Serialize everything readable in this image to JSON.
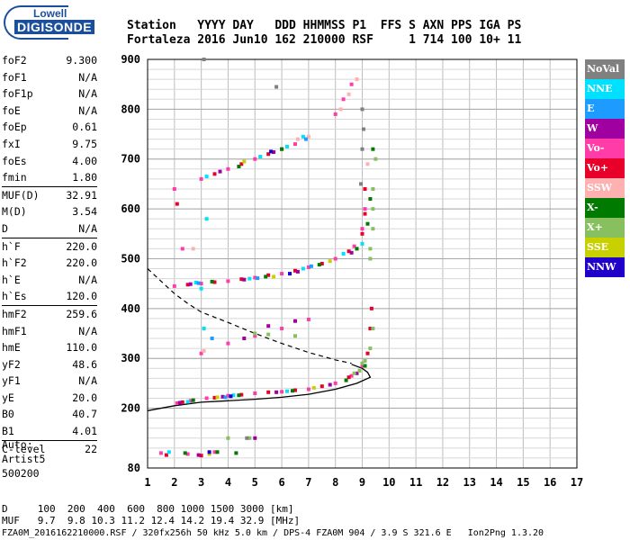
{
  "logo": {
    "brand": "Lowell",
    "product": "DIGISONDE"
  },
  "header": {
    "line1": "Station   YYYY DAY   DDD HHMMSS P1  FFS S AXN PPS IGA PS",
    "line2": "Fortaleza 2016 Jun10 162 210000 RSF     1 714 100 10+ 11"
  },
  "params": {
    "group1": [
      {
        "name": "foF2",
        "value": "9.300"
      },
      {
        "name": "foF1",
        "value": "N/A"
      },
      {
        "name": "foF1p",
        "value": "N/A"
      },
      {
        "name": "foE",
        "value": "N/A"
      },
      {
        "name": "foEp",
        "value": "0.61"
      },
      {
        "name": "fxI",
        "value": "9.75"
      },
      {
        "name": "foEs",
        "value": "4.00"
      },
      {
        "name": "fmin",
        "value": "1.80"
      }
    ],
    "group2": [
      {
        "name": "MUF(D)",
        "value": "32.91"
      },
      {
        "name": "M(D)",
        "value": "3.54"
      },
      {
        "name": "D",
        "value": "N/A"
      }
    ],
    "group3": [
      {
        "name": "h`F",
        "value": "220.0"
      },
      {
        "name": "h`F2",
        "value": "220.0"
      },
      {
        "name": "h`E",
        "value": "N/A"
      },
      {
        "name": "h`Es",
        "value": "120.0"
      }
    ],
    "group4": [
      {
        "name": "hmF2",
        "value": "259.6"
      },
      {
        "name": "hmF1",
        "value": "N/A"
      },
      {
        "name": "hmE",
        "value": "110.0"
      },
      {
        "name": "yF2",
        "value": "48.6"
      },
      {
        "name": "yF1",
        "value": "N/A"
      },
      {
        "name": "yE",
        "value": "20.0"
      },
      {
        "name": "B0",
        "value": "40.7"
      },
      {
        "name": "B1",
        "value": "4.01"
      }
    ],
    "group5": [
      {
        "name": "C-level",
        "value": "22"
      }
    ]
  },
  "auto": {
    "line1": "Auto:",
    "line2": "Artist5",
    "line3": "500200"
  },
  "footer": {
    "line1": "D     100  200  400  600  800 1000 1500 3000 [km]",
    "line2": "MUF   9.7  9.8 10.3 11.2 12.4 14.2 19.4 32.9 [MHz]",
    "line3": "FZA0M_2016162210000.RSF / 320fx256h 50 kHz 5.0 km / DPS-4 FZA0M 904 / 3.9 S 321.6 E   Ion2Png 1.3.20"
  },
  "legend": [
    {
      "label": "NoVal",
      "color": "#808080"
    },
    {
      "label": "NNE",
      "color": "#00e0ff"
    },
    {
      "label": "E",
      "color": "#1e9bff"
    },
    {
      "label": "W",
      "color": "#a000a0"
    },
    {
      "label": "Vo-",
      "color": "#ff3ca8"
    },
    {
      "label": "Vo+",
      "color": "#e8002a"
    },
    {
      "label": "SSW",
      "color": "#ffb0b0"
    },
    {
      "label": "X-",
      "color": "#007a00"
    },
    {
      "label": "X+",
      "color": "#88c060"
    },
    {
      "label": "SSE",
      "color": "#c8d000"
    },
    {
      "label": "NNW",
      "color": "#2000c8"
    }
  ],
  "chart_data": {
    "type": "scatter",
    "xlim": [
      1,
      17
    ],
    "ylim": [
      80,
      900
    ],
    "x_ticks": [
      1,
      2,
      3,
      4,
      5,
      6,
      7,
      8,
      9,
      10,
      11,
      12,
      13,
      14,
      15,
      16,
      17
    ],
    "y_ticks": [
      80,
      200,
      300,
      400,
      500,
      600,
      700,
      800,
      900
    ],
    "grid": true,
    "series": [
      {
        "name": "Vo-",
        "color": "#ff3ca8",
        "points": [
          [
            2.1,
            210
          ],
          [
            2.6,
            215
          ],
          [
            3.2,
            220
          ],
          [
            4.0,
            225
          ],
          [
            5.0,
            230
          ],
          [
            6.0,
            233
          ],
          [
            7.0,
            238
          ],
          [
            8.0,
            250
          ],
          [
            8.6,
            265
          ],
          [
            9.0,
            285
          ],
          [
            1.5,
            110
          ],
          [
            2.5,
            108
          ],
          [
            3.5,
            112
          ],
          [
            2.0,
            445
          ],
          [
            3.0,
            450
          ],
          [
            4.0,
            455
          ],
          [
            5.0,
            462
          ],
          [
            6.0,
            470
          ],
          [
            7.0,
            483
          ],
          [
            8.0,
            500
          ],
          [
            8.7,
            525
          ],
          [
            9.0,
            560
          ],
          [
            9.1,
            600
          ],
          [
            2.0,
            640
          ],
          [
            3.0,
            660
          ],
          [
            4.0,
            680
          ],
          [
            5.0,
            700
          ],
          [
            6.0,
            720
          ],
          [
            6.5,
            730
          ],
          [
            8.0,
            790
          ],
          [
            8.3,
            820
          ],
          [
            8.6,
            850
          ],
          [
            2.3,
            520
          ],
          [
            3.0,
            310
          ],
          [
            4.0,
            330
          ],
          [
            5.0,
            345
          ],
          [
            6.0,
            360
          ],
          [
            7.0,
            378
          ]
        ]
      },
      {
        "name": "Vo+",
        "color": "#e8002a",
        "points": [
          [
            2.3,
            212
          ],
          [
            3.5,
            221
          ],
          [
            4.5,
            227
          ],
          [
            5.5,
            232
          ],
          [
            6.5,
            236
          ],
          [
            7.5,
            244
          ],
          [
            8.5,
            262
          ],
          [
            9.2,
            310
          ],
          [
            9.3,
            360
          ],
          [
            9.35,
            400
          ],
          [
            2.5,
            448
          ],
          [
            3.5,
            453
          ],
          [
            4.5,
            459
          ],
          [
            5.5,
            467
          ],
          [
            6.5,
            476
          ],
          [
            7.5,
            490
          ],
          [
            8.5,
            515
          ],
          [
            9.0,
            550
          ],
          [
            9.1,
            590
          ],
          [
            9.1,
            640
          ],
          [
            3.5,
            670
          ],
          [
            4.5,
            690
          ],
          [
            5.5,
            710
          ],
          [
            1.7,
            106
          ],
          [
            3.0,
            105
          ],
          [
            2.1,
            610
          ]
        ]
      },
      {
        "name": "NNE",
        "color": "#00e0ff",
        "points": [
          [
            2.5,
            213
          ],
          [
            4.2,
            226
          ],
          [
            6.2,
            234
          ],
          [
            2.8,
            452
          ],
          [
            4.8,
            460
          ],
          [
            6.8,
            480
          ],
          [
            8.3,
            510
          ],
          [
            9.0,
            530
          ],
          [
            3.2,
            665
          ],
          [
            5.2,
            705
          ],
          [
            6.2,
            725
          ],
          [
            6.8,
            745
          ],
          [
            3.1,
            360
          ],
          [
            3.0,
            440
          ],
          [
            1.8,
            112
          ],
          [
            3.2,
            580
          ]
        ]
      },
      {
        "name": "W",
        "color": "#a000a0",
        "points": [
          [
            2.2,
            211
          ],
          [
            3.8,
            223
          ],
          [
            5.8,
            232
          ],
          [
            7.8,
            247
          ],
          [
            8.8,
            270
          ],
          [
            2.6,
            449
          ],
          [
            4.6,
            458
          ],
          [
            6.6,
            474
          ],
          [
            8.6,
            512
          ],
          [
            3.7,
            675
          ],
          [
            5.7,
            714
          ],
          [
            4.6,
            340
          ],
          [
            5.5,
            365
          ],
          [
            6.5,
            375
          ],
          [
            2.9,
            106
          ],
          [
            5.0,
            140
          ]
        ]
      },
      {
        "name": "X-",
        "color": "#007a00",
        "points": [
          [
            2.7,
            216
          ],
          [
            4.4,
            226
          ],
          [
            6.4,
            235
          ],
          [
            8.4,
            256
          ],
          [
            9.1,
            285
          ],
          [
            3.4,
            454
          ],
          [
            5.4,
            464
          ],
          [
            7.4,
            488
          ],
          [
            8.8,
            520
          ],
          [
            9.2,
            570
          ],
          [
            9.3,
            620
          ],
          [
            9.4,
            720
          ],
          [
            4.4,
            685
          ],
          [
            6.0,
            720
          ],
          [
            2.4,
            110
          ],
          [
            3.6,
            112
          ],
          [
            4.3,
            110
          ]
        ]
      },
      {
        "name": "X+",
        "color": "#88c060",
        "points": [
          [
            8.7,
            270
          ],
          [
            9.0,
            290
          ],
          [
            9.3,
            320
          ],
          [
            9.4,
            360
          ],
          [
            9.1,
            295
          ],
          [
            8.9,
            275
          ],
          [
            9.3,
            520
          ],
          [
            9.4,
            560
          ],
          [
            9.4,
            600
          ],
          [
            9.4,
            640
          ],
          [
            9.5,
            700
          ],
          [
            9.3,
            500
          ],
          [
            5.0,
            350
          ],
          [
            5.5,
            348
          ],
          [
            6.5,
            345
          ],
          [
            4.8,
            140
          ],
          [
            4.0,
            140
          ]
        ]
      },
      {
        "name": "SSW",
        "color": "#ffb0b0",
        "points": [
          [
            8.2,
            800
          ],
          [
            8.5,
            830
          ],
          [
            8.8,
            860
          ],
          [
            9.2,
            690
          ],
          [
            7.0,
            745
          ],
          [
            6.6,
            740
          ],
          [
            2.7,
            520
          ],
          [
            3.1,
            315
          ]
        ]
      },
      {
        "name": "SSE",
        "color": "#c8d000",
        "points": [
          [
            3.6,
            222
          ],
          [
            7.2,
            241
          ],
          [
            5.7,
            464
          ],
          [
            7.8,
            495
          ],
          [
            4.6,
            695
          ],
          [
            3.3,
            108
          ]
        ]
      },
      {
        "name": "E",
        "color": "#1e9bff",
        "points": [
          [
            2.9,
            451
          ],
          [
            5.1,
            461
          ],
          [
            7.1,
            485
          ],
          [
            3.9,
            222
          ],
          [
            6.9,
            740
          ],
          [
            3.4,
            340
          ]
        ]
      },
      {
        "name": "NNW",
        "color": "#2000c8",
        "points": [
          [
            4.1,
            224
          ],
          [
            6.3,
            470
          ],
          [
            3.3,
            112
          ],
          [
            5.6,
            715
          ]
        ]
      },
      {
        "name": "NoVal",
        "color": "#808080",
        "points": [
          [
            9.0,
            800
          ],
          [
            9.05,
            760
          ],
          [
            9.0,
            720
          ],
          [
            8.95,
            650
          ],
          [
            5.8,
            845
          ],
          [
            3.1,
            900
          ],
          [
            4.7,
            140
          ]
        ]
      }
    ],
    "profile_solid": [
      [
        1,
        195
      ],
      [
        2,
        205
      ],
      [
        3,
        212
      ],
      [
        4,
        215
      ],
      [
        5,
        218
      ],
      [
        6,
        222
      ],
      [
        7,
        228
      ],
      [
        8,
        238
      ],
      [
        8.8,
        250
      ],
      [
        9.3,
        262
      ],
      [
        9.2,
        272
      ],
      [
        9.0,
        280
      ],
      [
        8.6,
        288
      ]
    ],
    "profile_dashed": [
      [
        1,
        480
      ],
      [
        1.5,
        455
      ],
      [
        2,
        430
      ],
      [
        2.5,
        410
      ],
      [
        3,
        393
      ],
      [
        4,
        372
      ],
      [
        5,
        350
      ],
      [
        6,
        330
      ],
      [
        7,
        312
      ],
      [
        8,
        297
      ],
      [
        8.6,
        290
      ]
    ]
  }
}
